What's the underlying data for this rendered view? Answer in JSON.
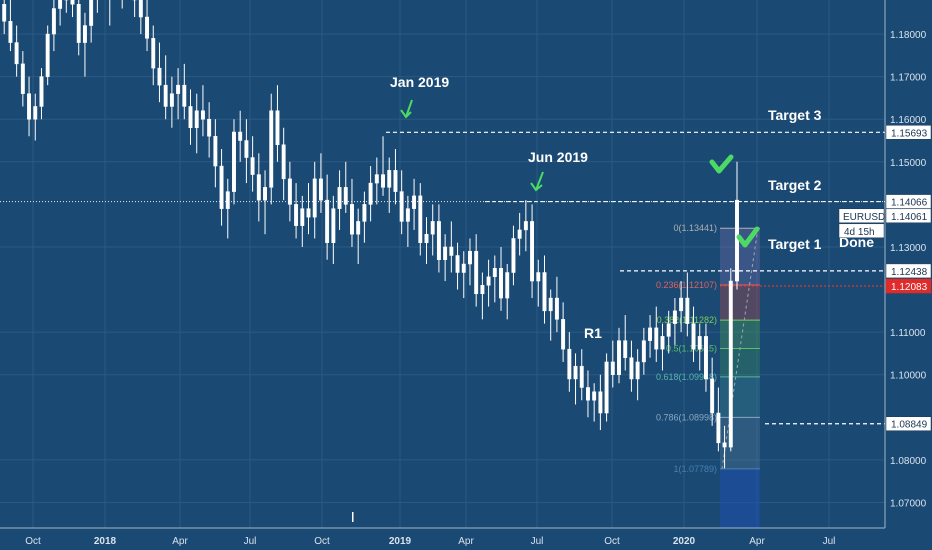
{
  "chart_data": {
    "type": "candlestick",
    "timeframe": "weekly",
    "ylim": [
      1.064,
      1.188
    ],
    "y_ticks": [
      "1.18000",
      "1.17000",
      "1.16000",
      "1.15000",
      "1.13000",
      "1.11000",
      "1.10000",
      "1.08000",
      "1.07000"
    ],
    "x_ticks": [
      "Oct",
      "2018",
      "Apr",
      "Jul",
      "Oct",
      "2019",
      "Apr",
      "Jul",
      "Oct",
      "2020",
      "Apr",
      "Jul"
    ],
    "symbol": "EURUSD",
    "price_labels": [
      {
        "text": "1.15693",
        "value": 1.15693,
        "style": "line"
      },
      {
        "text": "1.14066",
        "value": 1.14066,
        "style": "line"
      },
      {
        "text": "1.14061",
        "value": 1.14061,
        "style": "current"
      },
      {
        "text": "1.12438",
        "value": 1.12438,
        "style": "line"
      },
      {
        "text": "1.12083",
        "value": 1.12083,
        "style": "red"
      },
      {
        "text": "1.08849",
        "value": 1.08849,
        "style": "line"
      }
    ],
    "countdown": "4d 15h",
    "horizontal_levels": [
      1.15693,
      1.14066,
      1.12438,
      1.12083,
      1.08849
    ],
    "fibonacci": {
      "high": 1.13441,
      "low": 1.07789,
      "levels": [
        {
          "ratio": "0",
          "text": "0(1.13441)",
          "value": 1.13441
        },
        {
          "ratio": "0.236",
          "text": "0.236(1.12107)",
          "value": 1.12107
        },
        {
          "ratio": "0.382",
          "text": "0.382(1.11282)",
          "value": 1.11282
        },
        {
          "ratio": "0.5",
          "text": "0.5(1.10615)",
          "value": 1.10615
        },
        {
          "ratio": "0.618",
          "text": "0.618(1.09948)",
          "value": 1.09948
        },
        {
          "ratio": "0.786",
          "text": "0.786(1.08998)",
          "value": 1.08998
        },
        {
          "ratio": "1",
          "text": "1(1.07789)",
          "value": 1.07789
        }
      ]
    },
    "annotations": [
      "Jan 2019",
      "Jun 2019",
      "Target 3",
      "Target 2",
      "Target 1",
      "Done",
      "R1"
    ],
    "candles_ohlc": [
      [
        1.179,
        1.19,
        1.175,
        1.187
      ],
      [
        1.187,
        1.192,
        1.18,
        1.183
      ],
      [
        1.183,
        1.188,
        1.176,
        1.178
      ],
      [
        1.178,
        1.182,
        1.17,
        1.173
      ],
      [
        1.173,
        1.176,
        1.163,
        1.166
      ],
      [
        1.166,
        1.17,
        1.156,
        1.16
      ],
      [
        1.16,
        1.166,
        1.155,
        1.163
      ],
      [
        1.163,
        1.172,
        1.16,
        1.17
      ],
      [
        1.17,
        1.182,
        1.168,
        1.18
      ],
      [
        1.18,
        1.19,
        1.176,
        1.186
      ],
      [
        1.186,
        1.192,
        1.182,
        1.188
      ],
      [
        1.188,
        1.195,
        1.185,
        1.192
      ],
      [
        1.192,
        1.197,
        1.184,
        1.187
      ],
      [
        1.187,
        1.19,
        1.175,
        1.178
      ],
      [
        1.178,
        1.185,
        1.17,
        1.182
      ],
      [
        1.182,
        1.192,
        1.178,
        1.189
      ],
      [
        1.189,
        1.196,
        1.185,
        1.193
      ],
      [
        1.193,
        1.198,
        1.188,
        1.19
      ],
      [
        1.19,
        1.196,
        1.182,
        1.194
      ],
      [
        1.194,
        1.199,
        1.188,
        1.192
      ],
      [
        1.192,
        1.198,
        1.186,
        1.196
      ],
      [
        1.196,
        1.199,
        1.189,
        1.191
      ],
      [
        1.191,
        1.195,
        1.184,
        1.188
      ],
      [
        1.188,
        1.192,
        1.18,
        1.184
      ],
      [
        1.184,
        1.188,
        1.176,
        1.179
      ],
      [
        1.179,
        1.182,
        1.168,
        1.172
      ],
      [
        1.172,
        1.178,
        1.164,
        1.168
      ],
      [
        1.168,
        1.175,
        1.16,
        1.163
      ],
      [
        1.163,
        1.17,
        1.158,
        1.166
      ],
      [
        1.166,
        1.172,
        1.16,
        1.168
      ],
      [
        1.168,
        1.173,
        1.16,
        1.163
      ],
      [
        1.163,
        1.167,
        1.154,
        1.158
      ],
      [
        1.158,
        1.166,
        1.152,
        1.162
      ],
      [
        1.162,
        1.168,
        1.156,
        1.16
      ],
      [
        1.16,
        1.164,
        1.151,
        1.156
      ],
      [
        1.156,
        1.16,
        1.144,
        1.149
      ],
      [
        1.149,
        1.153,
        1.135,
        1.139
      ],
      [
        1.139,
        1.146,
        1.132,
        1.143
      ],
      [
        1.143,
        1.16,
        1.14,
        1.157
      ],
      [
        1.157,
        1.162,
        1.15,
        1.155
      ],
      [
        1.155,
        1.16,
        1.145,
        1.151
      ],
      [
        1.151,
        1.156,
        1.143,
        1.147
      ],
      [
        1.147,
        1.152,
        1.136,
        1.141
      ],
      [
        1.141,
        1.148,
        1.133,
        1.144
      ],
      [
        1.144,
        1.166,
        1.14,
        1.162
      ],
      [
        1.162,
        1.168,
        1.15,
        1.154
      ],
      [
        1.154,
        1.158,
        1.141,
        1.146
      ],
      [
        1.146,
        1.15,
        1.136,
        1.14
      ],
      [
        1.14,
        1.145,
        1.132,
        1.135
      ],
      [
        1.135,
        1.142,
        1.13,
        1.139
      ],
      [
        1.139,
        1.145,
        1.133,
        1.137
      ],
      [
        1.137,
        1.15,
        1.132,
        1.146
      ],
      [
        1.146,
        1.152,
        1.138,
        1.141
      ],
      [
        1.141,
        1.147,
        1.127,
        1.131
      ],
      [
        1.131,
        1.142,
        1.126,
        1.139
      ],
      [
        1.139,
        1.148,
        1.134,
        1.144
      ],
      [
        1.144,
        1.15,
        1.138,
        1.14
      ],
      [
        1.14,
        1.146,
        1.13,
        1.133
      ],
      [
        1.133,
        1.139,
        1.126,
        1.136
      ],
      [
        1.136,
        1.143,
        1.131,
        1.14
      ],
      [
        1.14,
        1.149,
        1.136,
        1.145
      ],
      [
        1.145,
        1.151,
        1.14,
        1.147
      ],
      [
        1.147,
        1.156,
        1.142,
        1.144
      ],
      [
        1.144,
        1.151,
        1.138,
        1.148
      ],
      [
        1.148,
        1.153,
        1.14,
        1.143
      ],
      [
        1.143,
        1.148,
        1.133,
        1.136
      ],
      [
        1.136,
        1.142,
        1.13,
        1.139
      ],
      [
        1.139,
        1.146,
        1.134,
        1.142
      ],
      [
        1.142,
        1.145,
        1.128,
        1.131
      ],
      [
        1.131,
        1.137,
        1.126,
        1.133
      ],
      [
        1.133,
        1.14,
        1.128,
        1.136
      ],
      [
        1.136,
        1.14,
        1.124,
        1.127
      ],
      [
        1.127,
        1.133,
        1.122,
        1.13
      ],
      [
        1.13,
        1.136,
        1.124,
        1.128
      ],
      [
        1.128,
        1.131,
        1.12,
        1.124
      ],
      [
        1.124,
        1.129,
        1.118,
        1.126
      ],
      [
        1.126,
        1.132,
        1.121,
        1.129
      ],
      [
        1.129,
        1.133,
        1.116,
        1.119
      ],
      [
        1.119,
        1.124,
        1.113,
        1.121
      ],
      [
        1.121,
        1.127,
        1.116,
        1.123
      ],
      [
        1.123,
        1.128,
        1.117,
        1.125
      ],
      [
        1.125,
        1.13,
        1.115,
        1.118
      ],
      [
        1.118,
        1.126,
        1.113,
        1.124
      ],
      [
        1.124,
        1.135,
        1.121,
        1.132
      ],
      [
        1.132,
        1.138,
        1.128,
        1.134
      ],
      [
        1.134,
        1.141,
        1.129,
        1.136
      ],
      [
        1.136,
        1.14,
        1.118,
        1.122
      ],
      [
        1.122,
        1.127,
        1.116,
        1.124
      ],
      [
        1.124,
        1.128,
        1.112,
        1.115
      ],
      [
        1.115,
        1.12,
        1.108,
        1.118
      ],
      [
        1.118,
        1.123,
        1.11,
        1.113
      ],
      [
        1.113,
        1.117,
        1.103,
        1.106
      ],
      [
        1.106,
        1.11,
        1.096,
        1.099
      ],
      [
        1.099,
        1.105,
        1.093,
        1.102
      ],
      [
        1.102,
        1.106,
        1.094,
        1.097
      ],
      [
        1.097,
        1.101,
        1.09,
        1.094
      ],
      [
        1.094,
        1.098,
        1.089,
        1.096
      ],
      [
        1.096,
        1.1,
        1.087,
        1.091
      ],
      [
        1.091,
        1.105,
        1.089,
        1.103
      ],
      [
        1.103,
        1.108,
        1.097,
        1.1
      ],
      [
        1.1,
        1.111,
        1.098,
        1.108
      ],
      [
        1.108,
        1.114,
        1.101,
        1.104
      ],
      [
        1.104,
        1.108,
        1.096,
        1.099
      ],
      [
        1.099,
        1.106,
        1.094,
        1.103
      ],
      [
        1.103,
        1.111,
        1.1,
        1.108
      ],
      [
        1.108,
        1.114,
        1.104,
        1.111
      ],
      [
        1.111,
        1.116,
        1.103,
        1.106
      ],
      [
        1.106,
        1.112,
        1.101,
        1.109
      ],
      [
        1.109,
        1.115,
        1.105,
        1.112
      ],
      [
        1.112,
        1.118,
        1.107,
        1.115
      ],
      [
        1.115,
        1.122,
        1.11,
        1.118
      ],
      [
        1.118,
        1.124,
        1.109,
        1.112
      ],
      [
        1.112,
        1.116,
        1.103,
        1.106
      ],
      [
        1.106,
        1.112,
        1.101,
        1.109
      ],
      [
        1.109,
        1.112,
        1.096,
        1.099
      ],
      [
        1.099,
        1.104,
        1.088,
        1.091
      ],
      [
        1.091,
        1.097,
        1.082,
        1.084
      ],
      [
        1.084,
        1.088,
        1.078,
        1.083
      ],
      [
        1.083,
        1.125,
        1.082,
        1.122
      ],
      [
        1.122,
        1.15,
        1.12,
        1.141
      ]
    ]
  }
}
